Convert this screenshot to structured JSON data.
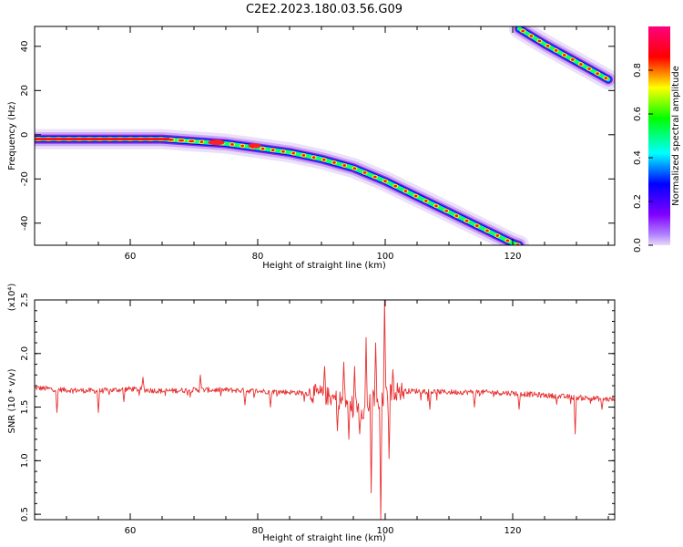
{
  "title": "C2E2.2023.180.03.56.G09",
  "chart_data": [
    {
      "type": "heatmap",
      "xlabel": "Height of straight line (km)",
      "ylabel": "Frequency (Hz)",
      "xlim": [
        45,
        136
      ],
      "ylim": [
        -50,
        49
      ],
      "xticks": [
        60,
        80,
        100,
        120
      ],
      "yticks": [
        -40,
        -20,
        0,
        20,
        40
      ],
      "colorbar": {
        "label": "Normalized spectral amplitude",
        "range": [
          0,
          1
        ],
        "ticks": [
          "0.0",
          "0.2",
          "0.4",
          "0.6",
          "0.8"
        ],
        "colors": [
          "#e8d8f8",
          "#8000ff",
          "#0000ff",
          "#00ffff",
          "#00ff00",
          "#ffff00",
          "#ff0000",
          "#ff0080"
        ]
      },
      "traces": [
        {
          "x": [
            45,
            55,
            65,
            70,
            75,
            80,
            85,
            90,
            95,
            100,
            105,
            110,
            115,
            120,
            121
          ],
          "y": [
            -2,
            -2,
            -2,
            -3,
            -4,
            -6,
            -8,
            -11,
            -15,
            -21,
            -28,
            -35,
            -42,
            -49,
            -50
          ]
        },
        {
          "x": [
            121,
            125,
            130,
            135
          ],
          "y": [
            48,
            41,
            33,
            25
          ]
        }
      ]
    },
    {
      "type": "line",
      "xlabel": "Height of straight line (km)",
      "ylabel": "SNR (10 * v/v)",
      "scale_label": "(x10⁴)",
      "xlim": [
        45,
        136
      ],
      "ylim": [
        0.45,
        2.5
      ],
      "xticks": [
        60,
        80,
        100,
        120
      ],
      "yticks": [
        "0.5",
        "1.0",
        "1.5",
        "2.0",
        "2.5"
      ],
      "color": "#e83030",
      "anchors": [
        [
          45,
          1.68
        ],
        [
          50,
          1.66
        ],
        [
          55,
          1.65
        ],
        [
          60,
          1.67
        ],
        [
          65,
          1.65
        ],
        [
          70,
          1.66
        ],
        [
          75,
          1.66
        ],
        [
          80,
          1.65
        ],
        [
          85,
          1.64
        ],
        [
          90,
          1.62
        ],
        [
          92,
          1.58
        ],
        [
          94,
          1.55
        ],
        [
          96,
          1.5
        ],
        [
          97,
          1.45
        ],
        [
          98,
          1.6
        ],
        [
          99,
          1.5
        ],
        [
          100,
          1.6
        ],
        [
          101,
          1.65
        ],
        [
          105,
          1.65
        ],
        [
          110,
          1.64
        ],
        [
          115,
          1.64
        ],
        [
          120,
          1.63
        ],
        [
          125,
          1.61
        ],
        [
          130,
          1.59
        ],
        [
          136,
          1.57
        ]
      ],
      "spikes": [
        [
          48.5,
          1.45
        ],
        [
          55,
          1.45
        ],
        [
          59,
          1.55
        ],
        [
          62,
          1.78
        ],
        [
          71,
          1.8
        ],
        [
          78,
          1.52
        ],
        [
          82,
          1.5
        ],
        [
          90.5,
          1.88
        ],
        [
          91.5,
          1.52
        ],
        [
          92.5,
          1.28
        ],
        [
          93.5,
          1.92
        ],
        [
          94.3,
          1.2
        ],
        [
          95.2,
          1.88
        ],
        [
          96,
          1.25
        ],
        [
          97,
          2.15
        ],
        [
          97.8,
          0.7
        ],
        [
          98.5,
          2.1
        ],
        [
          99.3,
          0.45
        ],
        [
          99.9,
          2.5
        ],
        [
          100.6,
          1.02
        ],
        [
          101.2,
          1.85
        ],
        [
          107,
          1.48
        ],
        [
          114,
          1.5
        ],
        [
          121,
          1.48
        ],
        [
          129.8,
          1.25
        ],
        [
          134,
          1.48
        ]
      ]
    }
  ]
}
